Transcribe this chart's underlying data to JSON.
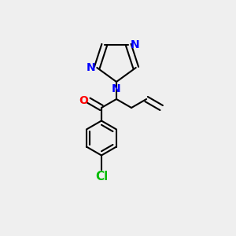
{
  "bg_color": "#efefef",
  "bond_color": "#000000",
  "bond_width": 1.5,
  "atom_colors": {
    "N": "#0000ff",
    "O": "#ff0000",
    "Cl": "#00bb00"
  },
  "font_size": 10
}
